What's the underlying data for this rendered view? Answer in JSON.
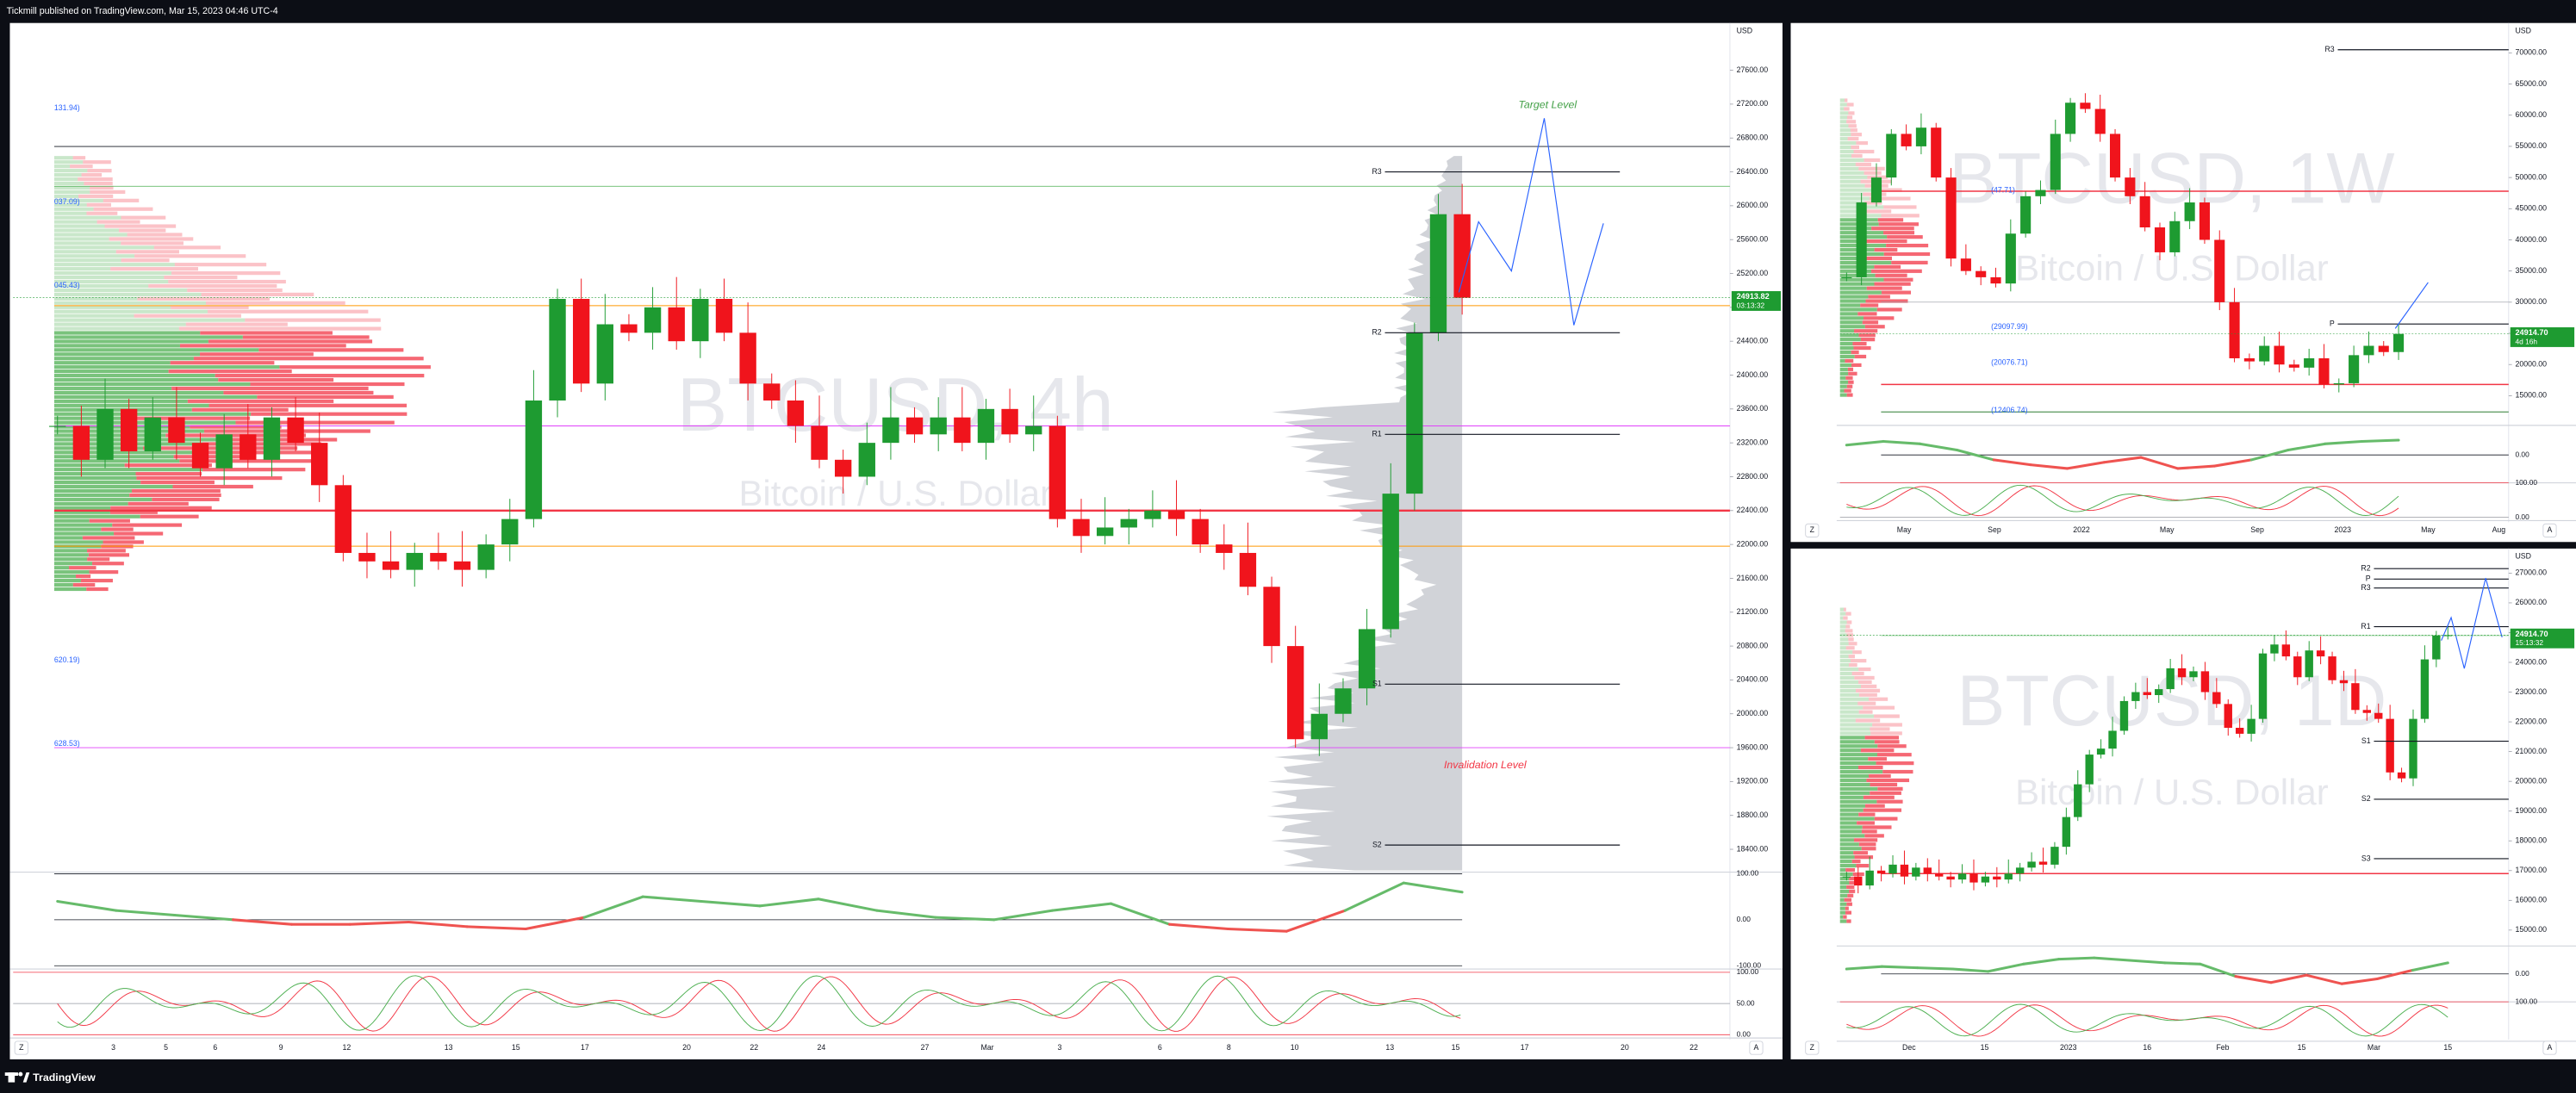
{
  "header": "Tickmill published on TradingView.com, Mar 15, 2023 04:46 UTC-4",
  "footer_brand": "TradingView",
  "panels": [
    {
      "symbol": "BTCUSD, 4h",
      "description": "Bitcoin / U.S. Dollar",
      "currency": "USD",
      "last_price": {
        "value": 24913.82,
        "label": "24913.82"
      },
      "countdown": "03:13:32",
      "up_color": "#1e9b31",
      "down_color": "#f0141c",
      "ylim": [
        18150,
        28100
      ],
      "yticks": [
        {
          "value": 18400,
          "label": "18400.00"
        },
        {
          "value": 18800,
          "label": "18800.00"
        },
        {
          "value": 19200,
          "label": "19200.00"
        },
        {
          "value": 19600,
          "label": "19600.00"
        },
        {
          "value": 20000,
          "label": "20000.00"
        },
        {
          "value": 20400,
          "label": "20400.00"
        },
        {
          "value": 20800,
          "label": "20800.00"
        },
        {
          "value": 21200,
          "label": "21200.00"
        },
        {
          "value": 21600,
          "label": "21600.00"
        },
        {
          "value": 22000,
          "label": "22000.00"
        },
        {
          "value": 22400,
          "label": "22400.00"
        },
        {
          "value": 22800,
          "label": "22800.00"
        },
        {
          "value": 23200,
          "label": "23200.00"
        },
        {
          "value": 23600,
          "label": "23600.00"
        },
        {
          "value": 24000,
          "label": "24000.00"
        },
        {
          "value": 24400,
          "label": "24400.00"
        },
        {
          "value": 24800,
          "label": "24800.00"
        },
        {
          "value": 25200,
          "label": "25200.00"
        },
        {
          "value": 25600,
          "label": "25600.00"
        },
        {
          "value": 26000,
          "label": "26000.00"
        },
        {
          "value": 26400,
          "label": "26400.00"
        },
        {
          "value": 26800,
          "label": "26800.00"
        },
        {
          "value": 27200,
          "label": "27200.00"
        },
        {
          "value": 27600,
          "label": "27600.00"
        }
      ],
      "closes": [
        23400,
        23000,
        23600,
        23100,
        23500,
        23200,
        22900,
        23300,
        23000,
        23500,
        23200,
        22700,
        21900,
        21800,
        21700,
        21900,
        21800,
        21700,
        22000,
        22300,
        23700,
        24900,
        23900,
        24600,
        24500,
        24800,
        24400,
        24900,
        24500,
        23900,
        23700,
        23400,
        23000,
        22800,
        23200,
        23500,
        23300,
        23500,
        23200,
        23600,
        23300,
        23400,
        22300,
        22100,
        22200,
        22300,
        22400,
        22300,
        22000,
        21900,
        21500,
        20800,
        19700,
        20000,
        20300,
        21000,
        22600,
        24500,
        25900,
        24913.82
      ],
      "levels": [
        {
          "label": "R3",
          "value": 26400
        },
        {
          "label": "R2",
          "value": 24500
        },
        {
          "label": "R1",
          "value": 23300
        },
        {
          "label": "S1",
          "value": 20350
        },
        {
          "label": "S2",
          "value": 18450
        }
      ],
      "hlines": [
        {
          "value": 22400,
          "color": "#f23645",
          "width": 1.2
        },
        {
          "value": 26700,
          "color": "#131722",
          "width": 0.5
        },
        {
          "value": 23400,
          "color": "#e040fb",
          "width": 0.5
        },
        {
          "value": 19600,
          "color": "#e040fb",
          "width": 0.5
        },
        {
          "value": 26230,
          "color": "#4caf50",
          "width": 0.4
        },
        {
          "value": 24820,
          "color": "#ff9800",
          "width": 0.5
        },
        {
          "value": 21980,
          "color": "#ff9800",
          "width": 0.5
        }
      ],
      "side_labels": [
        "131.94)",
        "037.09)",
        "045.43)",
        "620.19)",
        "628.53)"
      ],
      "annotations": [
        {
          "text": "Target Level",
          "color": "#43a047"
        },
        {
          "text": "Invalidation Level",
          "color": "#f23645"
        }
      ],
      "time_labels": [
        "3",
        "5",
        "6",
        "9",
        "12",
        "13",
        "15",
        "17",
        "20",
        "22",
        "24",
        "27",
        "Mar",
        "3",
        "6",
        "8",
        "10",
        "13",
        "15",
        "17",
        "20",
        "22"
      ],
      "rsi_lim": [
        -100,
        100
      ],
      "rsi": [
        40,
        20,
        10,
        0,
        -10,
        -10,
        -5,
        -15,
        -20,
        5,
        50,
        40,
        30,
        45,
        20,
        5,
        0,
        20,
        35,
        -10,
        -20,
        -25,
        20,
        80,
        60
      ],
      "rsi_ticks": [
        {
          "value": 100,
          "label": "100.00"
        },
        {
          "value": 0,
          "label": "0.00"
        },
        {
          "value": -100,
          "label": "-100.00"
        }
      ],
      "stoch_lim": [
        0,
        100
      ],
      "stoch_ticks": [
        {
          "value": 100,
          "label": "100.00"
        },
        {
          "value": 50,
          "label": "50.00"
        },
        {
          "value": 0,
          "label": "0.00"
        }
      ],
      "scale_buttons": [
        "Z",
        "A"
      ]
    },
    {
      "symbol": "BTCUSD, 1W",
      "description": "Bitcoin / U.S. Dollar",
      "currency": "USD",
      "last_price": {
        "value": 24914.7,
        "label": "24914.70"
      },
      "countdown": "4d 16h",
      "up_color": "#1e9b31",
      "down_color": "#f0141c",
      "ylim": [
        10500,
        74000
      ],
      "yticks": [
        {
          "value": 15000,
          "label": "15000.00"
        },
        {
          "value": 20000,
          "label": "20000.00"
        },
        {
          "value": 25000,
          "label": "25000.00"
        },
        {
          "value": 30000,
          "label": "30000.00"
        },
        {
          "value": 35000,
          "label": "35000.00"
        },
        {
          "value": 40000,
          "label": "40000.00"
        },
        {
          "value": 45000,
          "label": "45000.00"
        },
        {
          "value": 50000,
          "label": "50000.00"
        },
        {
          "value": 55000,
          "label": "55000.00"
        },
        {
          "value": 60000,
          "label": "60000.00"
        },
        {
          "value": 65000,
          "label": "65000.00"
        },
        {
          "value": 70000,
          "label": "70000.00"
        }
      ],
      "closes": [
        34000,
        46000,
        50000,
        57000,
        55000,
        58000,
        50000,
        37000,
        35000,
        34000,
        33000,
        41000,
        47000,
        48000,
        57000,
        62000,
        61000,
        57000,
        50000,
        47000,
        42000,
        38000,
        43000,
        46000,
        40000,
        30000,
        21000,
        20500,
        23000,
        20000,
        19500,
        21000,
        16800,
        17000,
        21500,
        23000,
        22000,
        24914.7
      ],
      "levels": [
        {
          "label": "R3",
          "value": 70500
        },
        {
          "label": "P",
          "value": 26500
        }
      ],
      "hlines": [
        {
          "value": 47800,
          "color": "#f23645",
          "width": 0.8
        },
        {
          "value": 16800,
          "color": "#f23645",
          "width": 0.8
        },
        {
          "value": 12400,
          "color": "#2e7d32",
          "width": 0.5
        },
        {
          "value": 30000,
          "color": "#9598a1",
          "width": 0.3
        }
      ],
      "side_labels": [
        "(47.71)",
        "(29097.99)",
        "(20076.71)",
        "(12406.74)"
      ],
      "annotations": [],
      "time_labels": [
        "May",
        "Sep",
        "2022",
        "May",
        "Sep",
        "2023",
        "May",
        "Aug"
      ],
      "rsi_lim": [
        -100,
        100
      ],
      "rsi": [
        40,
        55,
        45,
        20,
        -20,
        -40,
        -55,
        -30,
        -10,
        -55,
        -45,
        -20,
        20,
        45,
        55,
        60
      ],
      "rsi_ticks": [
        {
          "value": 0,
          "label": "0.00"
        }
      ],
      "stoch_lim": [
        0,
        100
      ],
      "stoch_ticks": [
        {
          "value": 100,
          "label": "100.00"
        },
        {
          "value": 0,
          "label": "0.00"
        }
      ],
      "scale_buttons": [
        "Z",
        "A"
      ]
    },
    {
      "symbol": "BTCUSD, 1D",
      "description": "Bitcoin / U.S. Dollar",
      "currency": "USD",
      "last_price": {
        "value": 24914.7,
        "label": "24914.70"
      },
      "countdown": "15:13:32",
      "up_color": "#1e9b31",
      "down_color": "#f0141c",
      "ylim": [
        14520,
        27660
      ],
      "yticks": [
        {
          "value": 15000,
          "label": "15000.00"
        },
        {
          "value": 16000,
          "label": "16000.00"
        },
        {
          "value": 17000,
          "label": "17000.00"
        },
        {
          "value": 18000,
          "label": "18000.00"
        },
        {
          "value": 19000,
          "label": "19000.00"
        },
        {
          "value": 20000,
          "label": "20000.00"
        },
        {
          "value": 21000,
          "label": "21000.00"
        },
        {
          "value": 22000,
          "label": "22000.00"
        },
        {
          "value": 23000,
          "label": "23000.00"
        },
        {
          "value": 24000,
          "label": "24000.00"
        },
        {
          "value": 25000,
          "label": "25000.00"
        },
        {
          "value": 26000,
          "label": "26000.00"
        },
        {
          "value": 27000,
          "label": "27000.00"
        }
      ],
      "closes": [
        16800,
        16500,
        17000,
        16900,
        17200,
        16800,
        17100,
        16900,
        16800,
        16700,
        16900,
        16600,
        16800,
        16700,
        16900,
        17100,
        17300,
        17200,
        17800,
        18800,
        19900,
        20900,
        21100,
        21700,
        22700,
        23000,
        22900,
        23100,
        23800,
        23500,
        23700,
        23000,
        22600,
        21800,
        21600,
        22100,
        24300,
        24600,
        24200,
        23500,
        24400,
        24200,
        23400,
        23300,
        22400,
        22300,
        22100,
        20300,
        20100,
        22100,
        24100,
        24900,
        24914.7
      ],
      "levels": [
        {
          "label": "R2",
          "value": 27150
        },
        {
          "label": "R3",
          "value": 26500
        },
        {
          "label": "P",
          "value": 26800
        },
        {
          "label": "R1",
          "value": 25200
        },
        {
          "label": "S1",
          "value": 21350
        },
        {
          "label": "S2",
          "value": 19400
        },
        {
          "label": "S3",
          "value": 17400
        }
      ],
      "hlines": [
        {
          "value": 16900,
          "color": "#f23645",
          "width": 0.8
        },
        {
          "value": 24900,
          "color": "#66bb6a",
          "width": 0.3
        }
      ],
      "side_labels": [],
      "annotations": [],
      "time_labels": [
        "Dec",
        "15",
        "2023",
        "16",
        "Feb",
        "15",
        "Mar",
        "15"
      ],
      "rsi_lim": [
        -100,
        100
      ],
      "rsi": [
        20,
        30,
        25,
        20,
        10,
        40,
        60,
        65,
        55,
        45,
        40,
        -10,
        -35,
        -5,
        -40,
        -20,
        15,
        45
      ],
      "rsi_ticks": [
        {
          "value": 0,
          "label": "0.00"
        }
      ],
      "stoch_lim": [
        0,
        100
      ],
      "stoch_ticks": [
        {
          "value": 100,
          "label": "100.00"
        }
      ],
      "scale_buttons": [
        "Z",
        "A"
      ]
    }
  ]
}
